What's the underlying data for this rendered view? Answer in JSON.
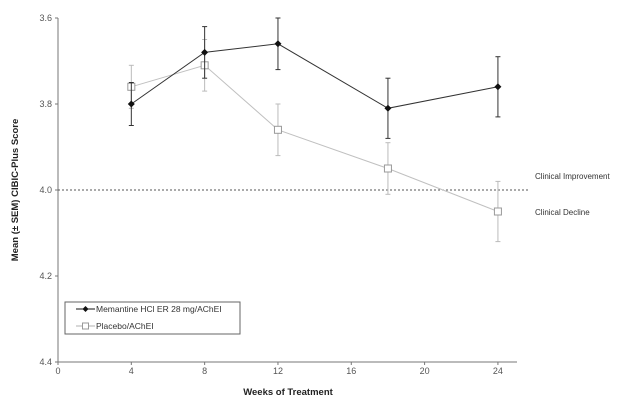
{
  "chart_data": {
    "type": "line",
    "title": "",
    "xlabel": "Weeks of Treatment",
    "ylabel": "Mean (± SEM) CIBIC-Plus Score",
    "xlim": [
      0,
      26
    ],
    "ylim": [
      3.6,
      4.4
    ],
    "y_inverted": true,
    "xticks": [
      0,
      4,
      8,
      12,
      16,
      20,
      24
    ],
    "yticks": [
      "3.6",
      "3.8",
      "4.0",
      "4.2",
      "4.4"
    ],
    "grid": false,
    "legend_position": "bottom-left",
    "reference_line": {
      "y": 4.0,
      "style": "dotted"
    },
    "annotations": [
      "Clinical Improvement",
      "Clinical Decline"
    ],
    "series": [
      {
        "name": "Memantine HCl ER 28 mg/AChEI",
        "color": "#111111",
        "marker": "filled-diamond",
        "x": [
          4,
          8,
          12,
          18,
          24
        ],
        "y": [
          3.8,
          3.68,
          3.66,
          3.81,
          3.76
        ],
        "sem": [
          0.05,
          0.06,
          0.06,
          0.07,
          0.07
        ]
      },
      {
        "name": "Placebo/AChEI",
        "color": "#b0b0b0",
        "marker": "open-square",
        "x": [
          4,
          8,
          12,
          18,
          24
        ],
        "y": [
          3.76,
          3.71,
          3.86,
          3.95,
          4.05
        ],
        "sem": [
          0.05,
          0.06,
          0.06,
          0.06,
          0.07
        ]
      }
    ]
  }
}
